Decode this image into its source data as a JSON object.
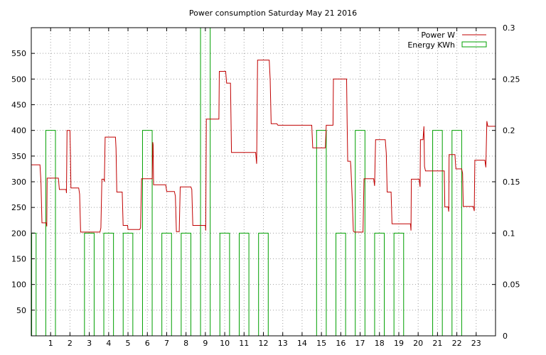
{
  "chart_data": {
    "type": "line",
    "title": "Power consumption Saturday May 21 2016",
    "xlabel": "",
    "ylabel": "",
    "xlim": [
      0,
      24
    ],
    "ylim": [
      0,
      600
    ],
    "y2lim": [
      0,
      0.3
    ],
    "x_ticks": [
      1,
      2,
      3,
      4,
      5,
      6,
      7,
      8,
      9,
      10,
      11,
      12,
      13,
      14,
      15,
      16,
      17,
      18,
      19,
      20,
      21,
      22,
      23
    ],
    "x_tick_labels": [
      "1",
      "2",
      "3",
      "4",
      "5",
      "6",
      "7",
      "8",
      "9",
      "10",
      "11",
      "12",
      "13",
      "14",
      "15",
      "16",
      "17",
      "18",
      "19",
      "20",
      "21",
      "22",
      "23"
    ],
    "y_ticks": [
      50,
      100,
      150,
      200,
      250,
      300,
      350,
      400,
      450,
      500,
      550
    ],
    "y_tick_labels": [
      "50",
      "100",
      "150",
      "200",
      "250",
      "300",
      "350",
      "400",
      "450",
      "500",
      "550"
    ],
    "y2_ticks": [
      0,
      0.05,
      0.1,
      0.15,
      0.2,
      0.25,
      0.3
    ],
    "y2_tick_labels": [
      "0",
      "0.05",
      "0.1",
      "0.15",
      "0.2",
      "0.25",
      "0.3"
    ],
    "grid": true,
    "legend_position": "top-right",
    "series": [
      {
        "name": "Power W",
        "color": "#c00000",
        "axis": "left",
        "style": "step",
        "points": [
          [
            0,
            333
          ],
          [
            0.45,
            333
          ],
          [
            0.5,
            300
          ],
          [
            0.55,
            220
          ],
          [
            0.78,
            220
          ],
          [
            0.8,
            213
          ],
          [
            0.82,
            307
          ],
          [
            1.4,
            307
          ],
          [
            1.45,
            285
          ],
          [
            1.8,
            285
          ],
          [
            1.82,
            278
          ],
          [
            1.85,
            400
          ],
          [
            2.0,
            400
          ],
          [
            2.02,
            360
          ],
          [
            2.05,
            288
          ],
          [
            2.45,
            288
          ],
          [
            2.5,
            276
          ],
          [
            2.55,
            202
          ],
          [
            3.55,
            202
          ],
          [
            3.6,
            210
          ],
          [
            3.65,
            305
          ],
          [
            3.75,
            305
          ],
          [
            3.78,
            300
          ],
          [
            3.82,
            387
          ],
          [
            4.35,
            387
          ],
          [
            4.38,
            365
          ],
          [
            4.42,
            280
          ],
          [
            4.7,
            280
          ],
          [
            4.75,
            215
          ],
          [
            4.98,
            215
          ],
          [
            5.0,
            207
          ],
          [
            5.6,
            207
          ],
          [
            5.65,
            210
          ],
          [
            5.7,
            306
          ],
          [
            6.25,
            306
          ],
          [
            6.28,
            377
          ],
          [
            6.3,
            372
          ],
          [
            6.32,
            294
          ],
          [
            6.95,
            294
          ],
          [
            7.0,
            281
          ],
          [
            7.4,
            281
          ],
          [
            7.45,
            272
          ],
          [
            7.5,
            203
          ],
          [
            7.65,
            203
          ],
          [
            7.7,
            290
          ],
          [
            8.25,
            290
          ],
          [
            8.3,
            285
          ],
          [
            8.35,
            215
          ],
          [
            9.0,
            215
          ],
          [
            9.02,
            205
          ],
          [
            9.05,
            422
          ],
          [
            9.7,
            422
          ],
          [
            9.72,
            515
          ],
          [
            10.05,
            515
          ],
          [
            10.1,
            492
          ],
          [
            10.3,
            492
          ],
          [
            10.35,
            357
          ],
          [
            11.6,
            357
          ],
          [
            11.65,
            335
          ],
          [
            11.7,
            537
          ],
          [
            12.3,
            537
          ],
          [
            12.35,
            500
          ],
          [
            12.4,
            413
          ],
          [
            12.7,
            413
          ],
          [
            12.75,
            410
          ],
          [
            14.5,
            410
          ],
          [
            14.55,
            366
          ],
          [
            15.2,
            366
          ],
          [
            15.25,
            410
          ],
          [
            15.6,
            410
          ],
          [
            15.62,
            500
          ],
          [
            16.3,
            500
          ],
          [
            16.33,
            413
          ],
          [
            16.36,
            340
          ],
          [
            16.5,
            340
          ],
          [
            16.52,
            330
          ],
          [
            16.6,
            258
          ],
          [
            16.65,
            204
          ],
          [
            16.7,
            202
          ],
          [
            17.15,
            202
          ],
          [
            17.2,
            306
          ],
          [
            17.7,
            306
          ],
          [
            17.75,
            292
          ],
          [
            17.8,
            382
          ],
          [
            18.3,
            382
          ],
          [
            18.35,
            356
          ],
          [
            18.4,
            280
          ],
          [
            18.6,
            280
          ],
          [
            18.65,
            218
          ],
          [
            19.6,
            218
          ],
          [
            19.63,
            205
          ],
          [
            19.65,
            305
          ],
          [
            20.05,
            305
          ],
          [
            20.1,
            290
          ],
          [
            20.12,
            382
          ],
          [
            20.25,
            382
          ],
          [
            20.3,
            408
          ],
          [
            20.33,
            330
          ],
          [
            20.38,
            321
          ],
          [
            21.35,
            321
          ],
          [
            21.38,
            251
          ],
          [
            21.55,
            251
          ],
          [
            21.58,
            242
          ],
          [
            21.6,
            353
          ],
          [
            21.9,
            353
          ],
          [
            21.95,
            325
          ],
          [
            22.25,
            325
          ],
          [
            22.3,
            316
          ],
          [
            22.33,
            252
          ],
          [
            22.85,
            252
          ],
          [
            22.9,
            243
          ],
          [
            22.93,
            342
          ],
          [
            23.45,
            342
          ],
          [
            23.5,
            328
          ],
          [
            23.55,
            418
          ],
          [
            23.6,
            408
          ],
          [
            24.0,
            408
          ]
        ]
      },
      {
        "name": "Energy KWh",
        "color": "#00a000",
        "axis": "right",
        "style": "impulse-box",
        "bars": [
          [
            0.02,
            0.25,
            0.1
          ],
          [
            0.75,
            1.25,
            0.2
          ],
          [
            2.75,
            3.25,
            0.1
          ],
          [
            3.75,
            4.25,
            0.1
          ],
          [
            4.75,
            5.25,
            0.1
          ],
          [
            5.75,
            6.25,
            0.2
          ],
          [
            6.75,
            7.25,
            0.1
          ],
          [
            7.75,
            8.25,
            0.1
          ],
          [
            8.75,
            9.25,
            0.3
          ],
          [
            9.75,
            10.25,
            0.1
          ],
          [
            10.75,
            11.25,
            0.1
          ],
          [
            11.75,
            12.25,
            0.1
          ],
          [
            14.75,
            15.25,
            0.2
          ],
          [
            15.75,
            16.25,
            0.1
          ],
          [
            16.75,
            17.25,
            0.2
          ],
          [
            17.75,
            18.25,
            0.1
          ],
          [
            18.75,
            19.25,
            0.1
          ],
          [
            20.75,
            21.25,
            0.2
          ],
          [
            21.75,
            22.25,
            0.2
          ]
        ]
      }
    ]
  }
}
